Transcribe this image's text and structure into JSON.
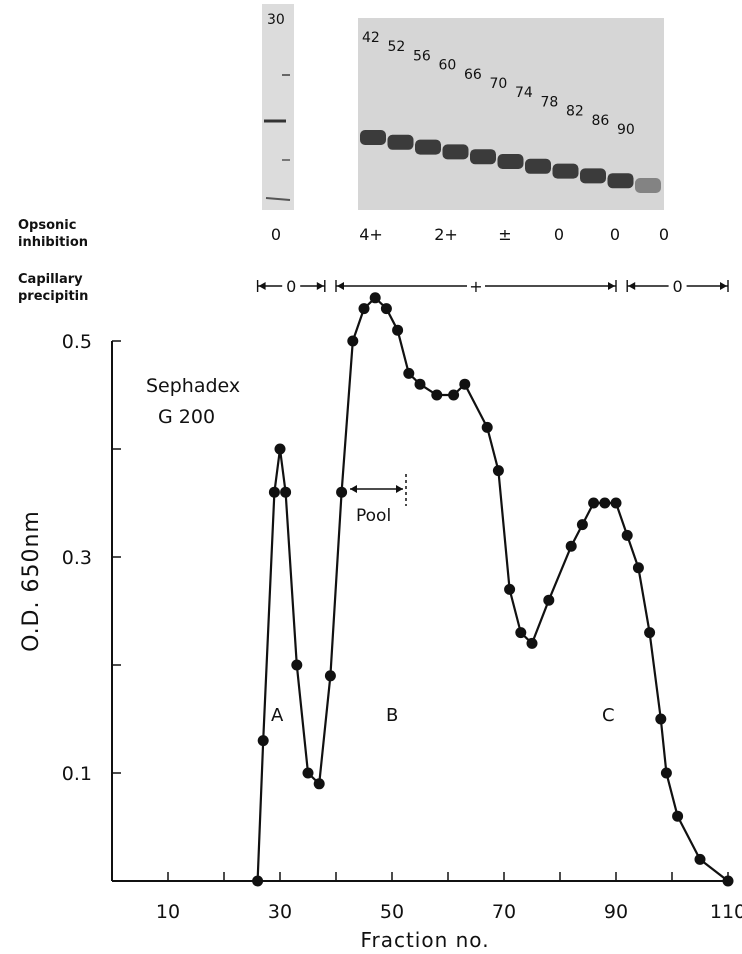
{
  "gel": {
    "single_lane_label": "30",
    "lane_labels": [
      "42",
      "52",
      "56",
      "60",
      "66",
      "70",
      "74",
      "78",
      "82",
      "86",
      "90"
    ]
  },
  "opsonic": {
    "label_line1": "Opsonic",
    "label_line2": "inhibition",
    "values": [
      "0",
      "4+",
      "2+",
      "±",
      "0",
      "0",
      "0"
    ]
  },
  "precipitin": {
    "label_line1": "Capillary",
    "label_line2": "precipitin",
    "segments": [
      {
        "from": 26,
        "to": 38,
        "label": "0"
      },
      {
        "from": 40,
        "to": 90,
        "label": "+"
      },
      {
        "from": 92,
        "to": 110,
        "label": "0"
      }
    ]
  },
  "annotations": {
    "column": "Sephadex",
    "column2": "G 200",
    "pool": "Pool",
    "peak_a": "A",
    "peak_b": "B",
    "peak_c": "C"
  },
  "chart_data": {
    "type": "line",
    "title": "",
    "xlabel": "Fraction no.",
    "ylabel": "O.D. 650nm",
    "xlim": [
      0,
      110
    ],
    "ylim": [
      0.0,
      0.5
    ],
    "xticks": [
      10,
      30,
      50,
      70,
      90,
      110
    ],
    "yticks": [
      0.1,
      0.3,
      0.5
    ],
    "grid": false,
    "series": [
      {
        "x": [
          26,
          27,
          29,
          30,
          31,
          33,
          35,
          37,
          39,
          41,
          43,
          45,
          47,
          49,
          51,
          53,
          55,
          58,
          61,
          63,
          67,
          69,
          71,
          73,
          75,
          78,
          82,
          84,
          86,
          88,
          90,
          92,
          94,
          96,
          98,
          99,
          101,
          105,
          110
        ],
        "y": [
          0.0,
          0.13,
          0.36,
          0.4,
          0.36,
          0.2,
          0.1,
          0.09,
          0.19,
          0.36,
          0.5,
          0.53,
          0.54,
          0.53,
          0.51,
          0.47,
          0.46,
          0.45,
          0.45,
          0.46,
          0.42,
          0.38,
          0.27,
          0.23,
          0.22,
          0.26,
          0.31,
          0.33,
          0.35,
          0.35,
          0.35,
          0.32,
          0.29,
          0.23,
          0.15,
          0.1,
          0.06,
          0.02,
          0.0
        ]
      }
    ]
  },
  "colors": {
    "ink": "#111111",
    "gel_background": "#d6d6d6",
    "band": "#202020"
  }
}
